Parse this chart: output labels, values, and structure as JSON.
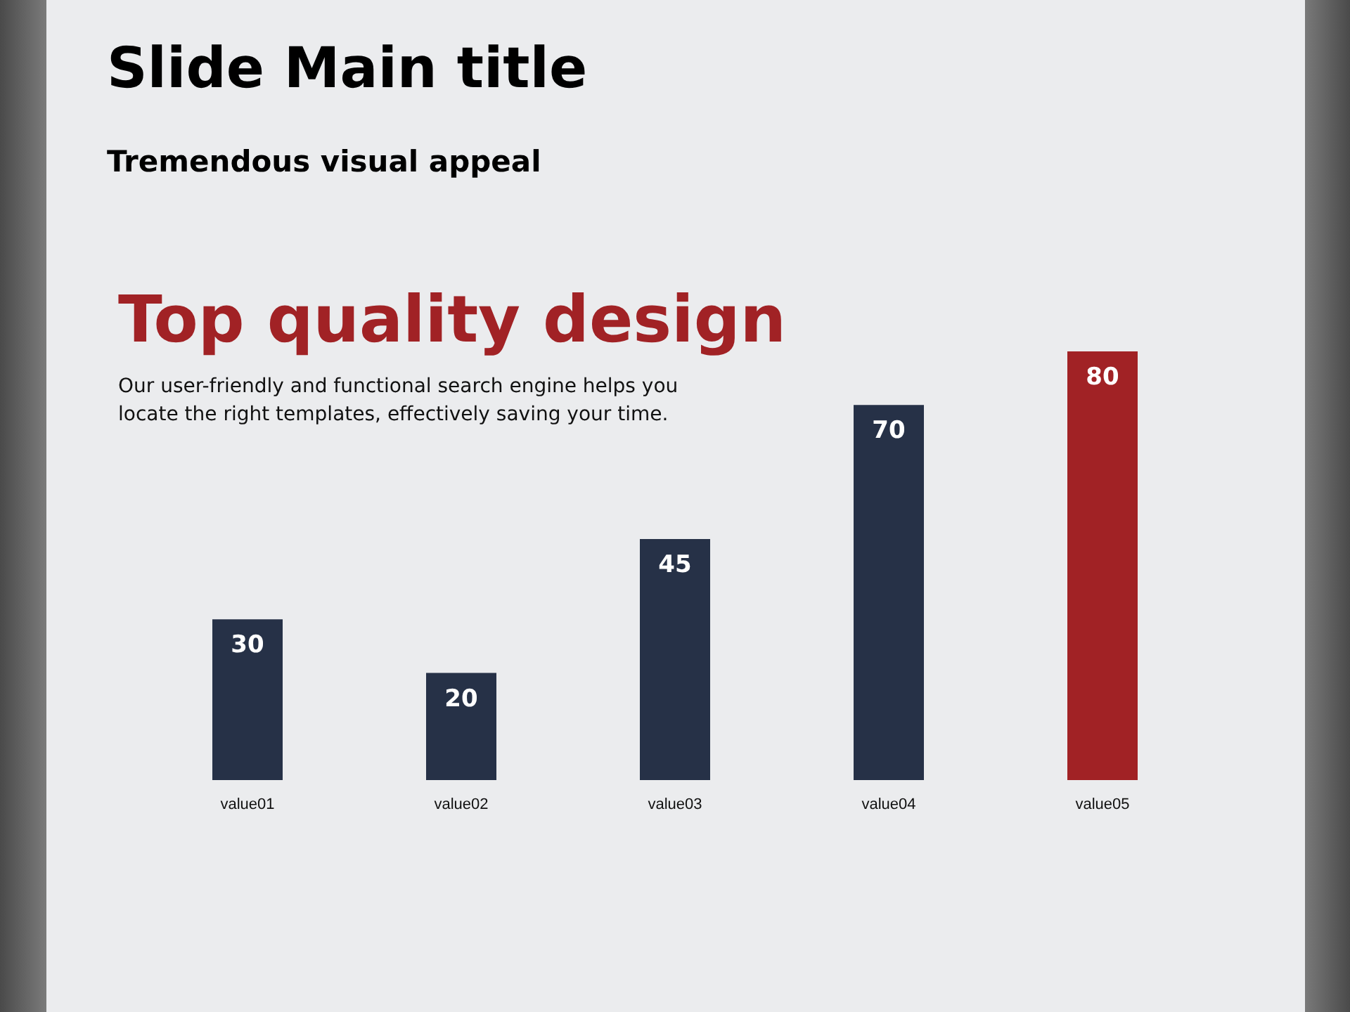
{
  "chart_data": {
    "type": "bar",
    "title": "Slide Main title",
    "subtitle": "Tremendous visual appeal",
    "annotations": [
      "Top quality design",
      "Our user-friendly and functional search engine helps you locate the right templates, effectively saving your time."
    ],
    "categories": [
      "value01",
      "value02",
      "value03",
      "value04",
      "value05"
    ],
    "values": [
      30,
      20,
      45,
      70,
      80
    ],
    "colors": [
      "#263147",
      "#263147",
      "#263147",
      "#263147",
      "#a12225"
    ],
    "relative": false,
    "data_labels": true
  }
}
